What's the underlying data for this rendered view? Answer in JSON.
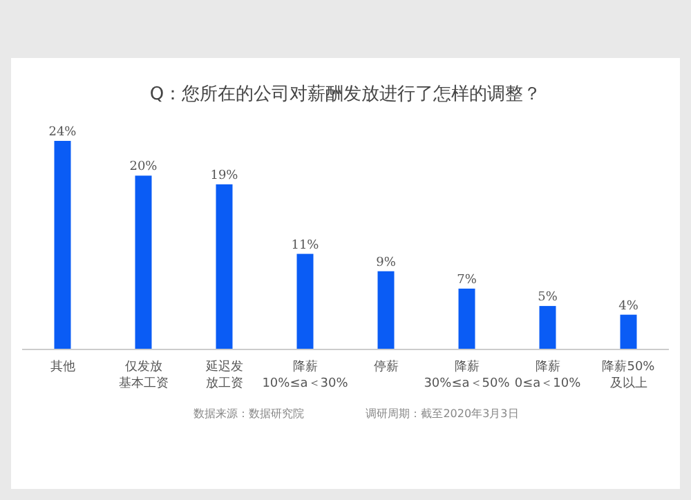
{
  "chart_data": {
    "type": "bar",
    "title": "Q：您所在的公司对薪酬发放进行了怎样的调整？",
    "categories": [
      "其他",
      "仅发放基本工资",
      "延迟发放工资",
      "降薪\n10%≤a＜30%",
      "停薪",
      "降薪\n30%≤a＜50%",
      "降薪\n0≤a＜10%",
      "降薪50%\n及以上"
    ],
    "values": [
      24,
      20,
      19,
      11,
      9,
      7,
      5,
      4
    ],
    "value_labels": [
      "24%",
      "20%",
      "19%",
      "11%",
      "9%",
      "7%",
      "5%",
      "4%"
    ],
    "color": "#0a5cf5",
    "annotations": [
      "数据来源：数据研究院",
      "调研周期：截至2020年3月3日"
    ]
  }
}
